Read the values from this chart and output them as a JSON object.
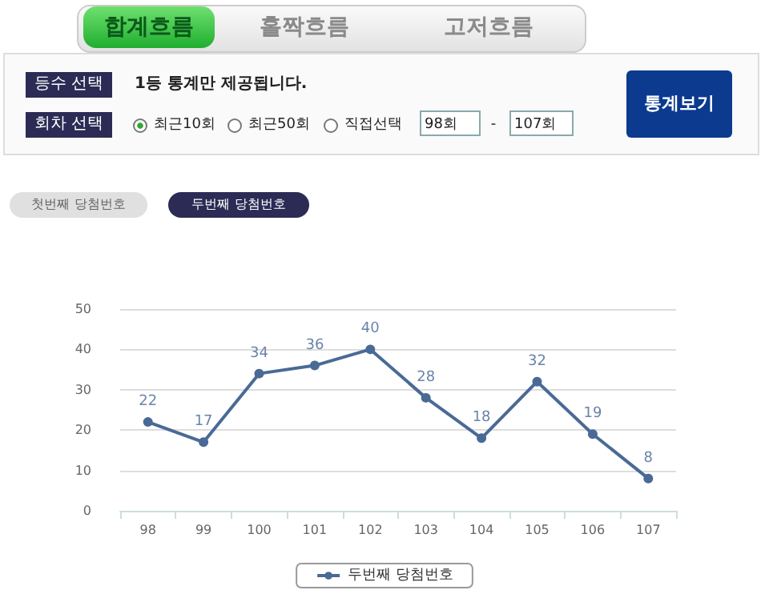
{
  "chart_data": [
    {
      "type": "other",
      "annotations": [
        "합계흐름",
        "홀짝흐름",
        "고저흐름",
        "등수 선택",
        "1등 통계만 제공됩니다.",
        "회차 선택",
        "최근10회",
        "최근50회",
        "직접선택",
        "98회",
        "-",
        "107회",
        "통계보기",
        "첫번째 당첨번호",
        "두번째 당첨번호"
      ]
    },
    {
      "type": "line",
      "categories": [
        "98",
        "99",
        "100",
        "101",
        "102",
        "103",
        "104",
        "105",
        "106",
        "107"
      ],
      "series": [
        {
          "name": "두번째 당첨번호",
          "color": "#4a6a96",
          "values": [
            22,
            17,
            34,
            36,
            40,
            28,
            18,
            32,
            19,
            8
          ]
        }
      ],
      "ylim": [
        0,
        50
      ],
      "yticks": [
        0,
        10,
        20,
        30,
        40,
        50
      ],
      "grid": "y",
      "legend": "bottom",
      "marker": "circle",
      "data_labels": true
    }
  ]
}
